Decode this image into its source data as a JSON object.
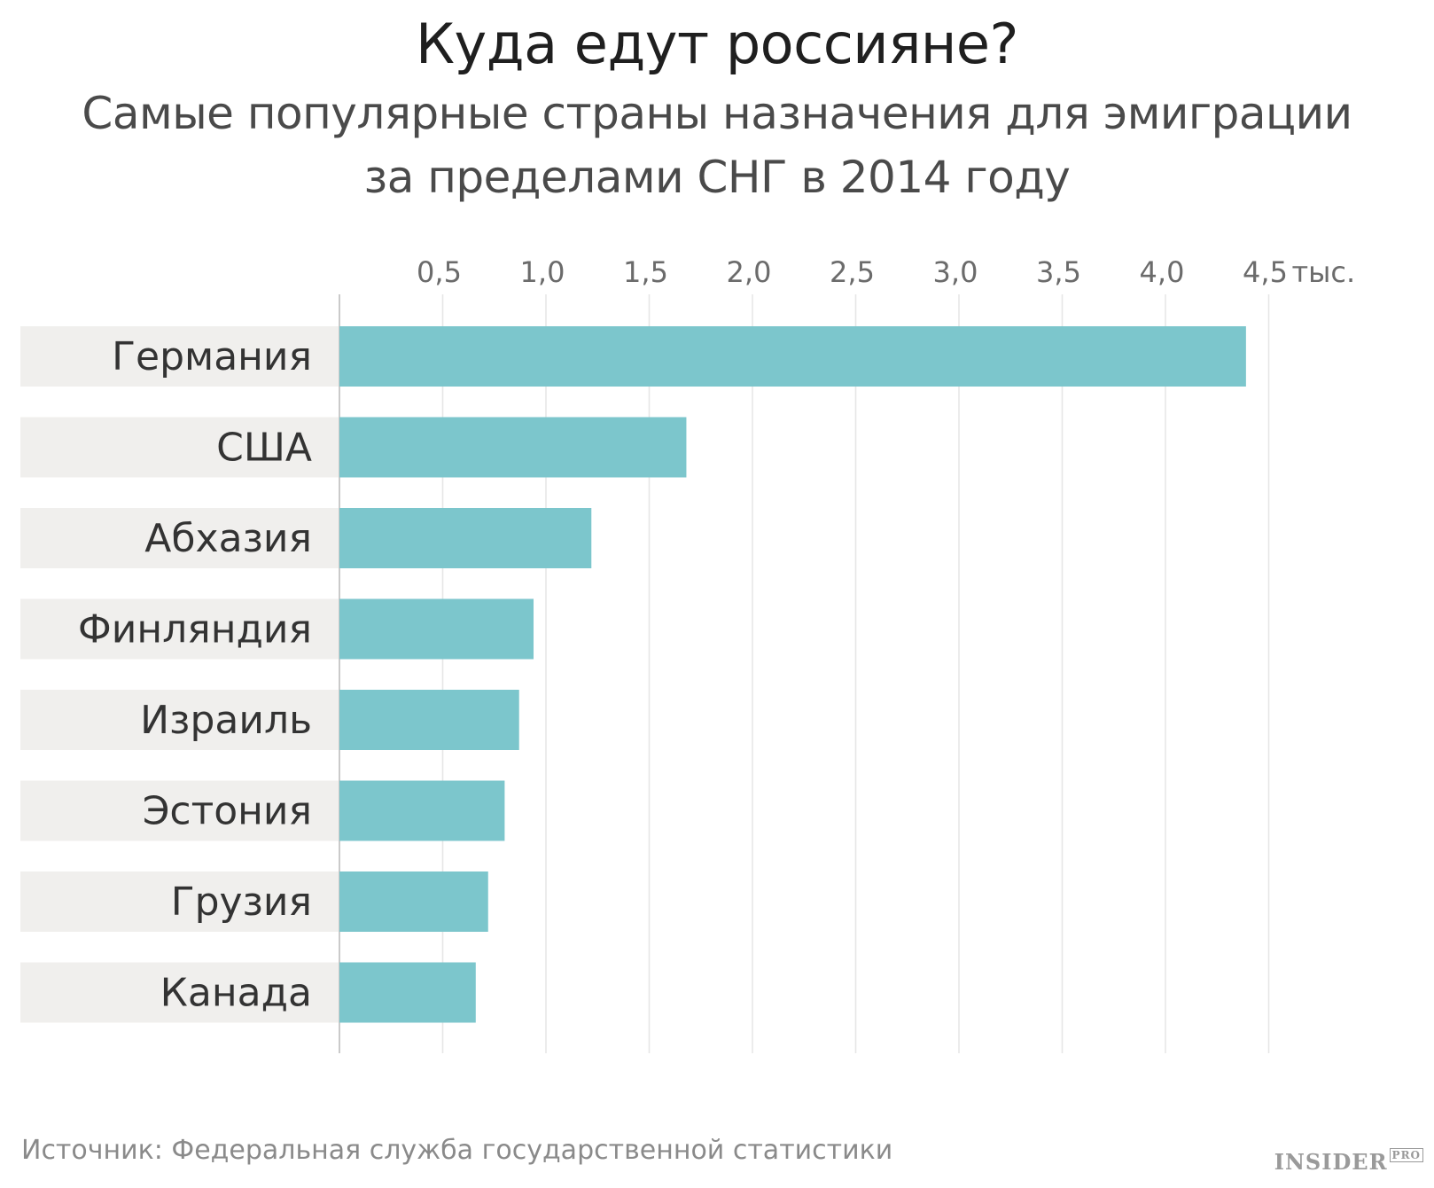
{
  "chart_data": {
    "type": "bar",
    "orientation": "horizontal",
    "title": "Куда едут россияне?",
    "subtitle_lines": [
      "Самые популярные страны назначения для эмиграции",
      "за пределами СНГ в 2014 году"
    ],
    "categories": [
      "Германия",
      "США",
      "Абхазия",
      "Финляндия",
      "Израиль",
      "Эстония",
      "Грузия",
      "Канада"
    ],
    "values": [
      4.39,
      1.68,
      1.22,
      0.94,
      0.87,
      0.8,
      0.72,
      0.66
    ],
    "x_ticks": [
      {
        "value": 0.5,
        "label": "0,5"
      },
      {
        "value": 1.0,
        "label": "1,0"
      },
      {
        "value": 1.5,
        "label": "1,5"
      },
      {
        "value": 2.0,
        "label": "2,0"
      },
      {
        "value": 2.5,
        "label": "2,5"
      },
      {
        "value": 3.0,
        "label": "3,0"
      },
      {
        "value": 3.5,
        "label": "3,5"
      },
      {
        "value": 4.0,
        "label": "4,0"
      },
      {
        "value": 4.5,
        "label": "4,5"
      }
    ],
    "x_unit": "тыс.",
    "xlim": [
      0,
      4.5
    ],
    "grid": true,
    "bar_color": "#7cc6cc",
    "label_band_color": "#f0efed"
  },
  "footer": {
    "source": "Источник: Федеральная служба государственной статистики",
    "brand": "INSIDER",
    "brand_sup": "PRO"
  }
}
